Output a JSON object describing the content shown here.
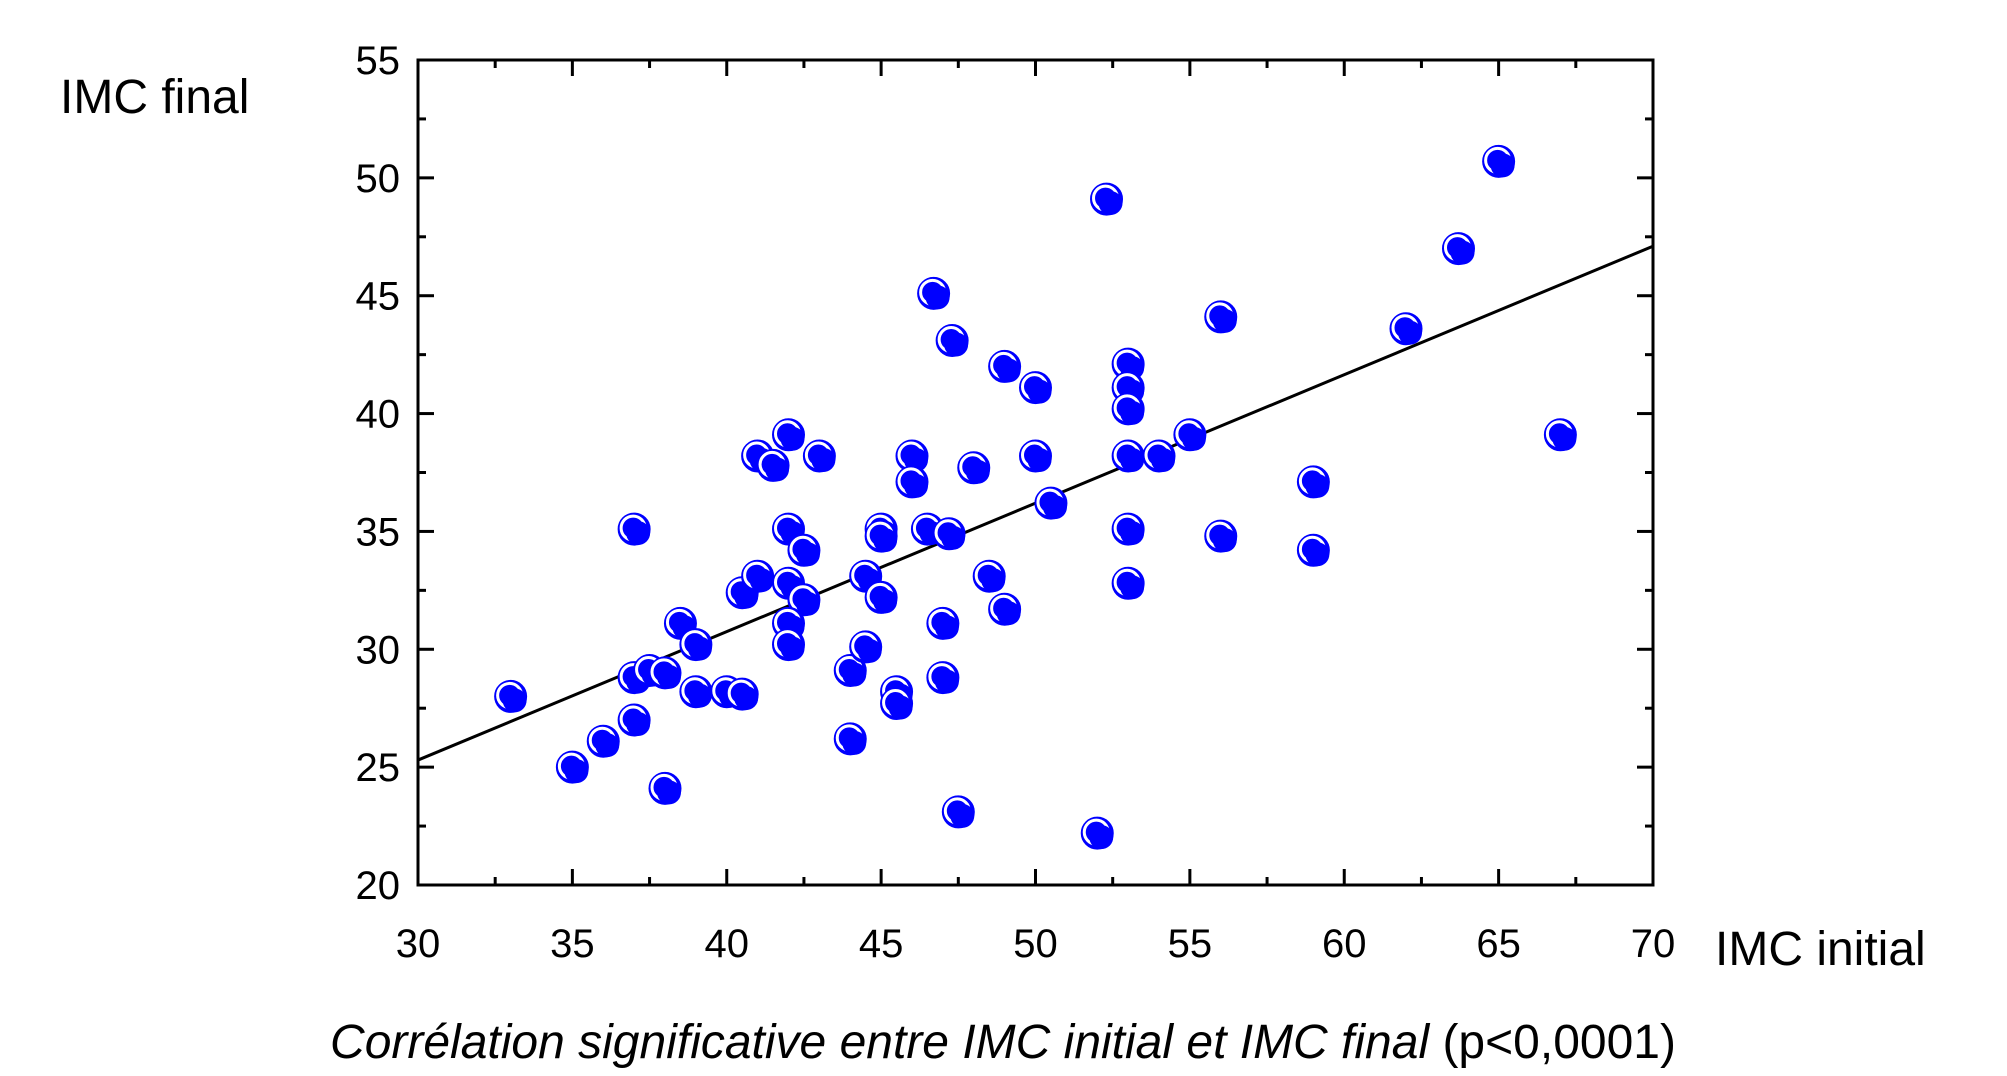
{
  "chart_data": {
    "type": "scatter",
    "xlabel": "IMC initial",
    "ylabel": "IMC final",
    "xlim": [
      30,
      70
    ],
    "ylim": [
      20,
      55
    ],
    "xticks": [
      30,
      35,
      40,
      45,
      50,
      55,
      60,
      65,
      70
    ],
    "yticks": [
      20,
      25,
      30,
      35,
      40,
      45,
      50,
      55
    ],
    "grid": false,
    "point_color": "#0000ff",
    "point_highlight": "#ffffff",
    "trend_color": "#000000",
    "trendline": {
      "x": [
        30,
        70
      ],
      "y": [
        25.3,
        47.1
      ]
    },
    "caption": {
      "italic": "Corrélation significative entre IMC initial et IMC final",
      "plain": " (p<0,0001)"
    },
    "points": [
      [
        33,
        28
      ],
      [
        35,
        25
      ],
      [
        36,
        26.1
      ],
      [
        37,
        35.1
      ],
      [
        37,
        28.8
      ],
      [
        37,
        27
      ],
      [
        37.5,
        29.1
      ],
      [
        38,
        29
      ],
      [
        38,
        24.1
      ],
      [
        38.5,
        31.1
      ],
      [
        39,
        30.2
      ],
      [
        39,
        28.2
      ],
      [
        40,
        28.2
      ],
      [
        40.5,
        28.1
      ],
      [
        40.5,
        32.4
      ],
      [
        41,
        33.1
      ],
      [
        41,
        38.2
      ],
      [
        41.5,
        37.8
      ],
      [
        42,
        39.1
      ],
      [
        42,
        35.1
      ],
      [
        42.5,
        34.2
      ],
      [
        42,
        32.8
      ],
      [
        42.5,
        32.1
      ],
      [
        42,
        31.1
      ],
      [
        42,
        30.2
      ],
      [
        43,
        38.2
      ],
      [
        44,
        29.1
      ],
      [
        44,
        26.2
      ],
      [
        44.5,
        33.1
      ],
      [
        44.5,
        30.1
      ],
      [
        45,
        35.1
      ],
      [
        45,
        34.8
      ],
      [
        45,
        32.2
      ],
      [
        45.5,
        28.2
      ],
      [
        45.5,
        27.7
      ],
      [
        46,
        38.2
      ],
      [
        46,
        37.1
      ],
      [
        46.5,
        35.1
      ],
      [
        46.7,
        45.1
      ],
      [
        47,
        31.1
      ],
      [
        47,
        28.8
      ],
      [
        47.2,
        34.9
      ],
      [
        47.3,
        43.1
      ],
      [
        47.5,
        23.1
      ],
      [
        48,
        37.7
      ],
      [
        48.5,
        33.1
      ],
      [
        49,
        31.7
      ],
      [
        49,
        42
      ],
      [
        50,
        38.2
      ],
      [
        50,
        41.1
      ],
      [
        50.5,
        36.2
      ],
      [
        52,
        22.2
      ],
      [
        52.3,
        49.1
      ],
      [
        53,
        42.1
      ],
      [
        53,
        41.1
      ],
      [
        53,
        40.2
      ],
      [
        53,
        38.2
      ],
      [
        53,
        35.1
      ],
      [
        53,
        32.8
      ],
      [
        54,
        38.2
      ],
      [
        55,
        39.1
      ],
      [
        56,
        44.1
      ],
      [
        56,
        34.8
      ],
      [
        59,
        37.1
      ],
      [
        59,
        34.2
      ],
      [
        62,
        43.6
      ],
      [
        63.7,
        47
      ],
      [
        65,
        50.7
      ],
      [
        67,
        39.1
      ]
    ]
  }
}
